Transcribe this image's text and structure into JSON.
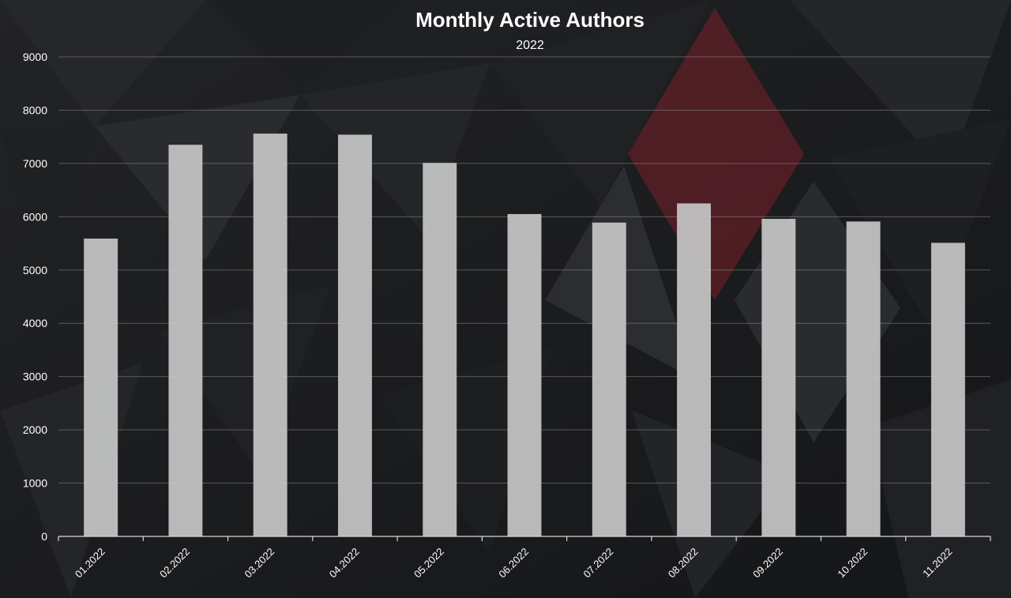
{
  "chart_data": {
    "type": "bar",
    "title": "Monthly Active Authors",
    "subtitle": "2022",
    "xlabel": "",
    "ylabel": "",
    "categories": [
      "01.2022",
      "02.2022",
      "03.2022",
      "04.2022",
      "05.2022",
      "06.2022",
      "07.2022",
      "08.2022",
      "09.2022",
      "10.2022",
      "11.2022"
    ],
    "values": [
      5590,
      7350,
      7560,
      7540,
      7010,
      6050,
      5890,
      6250,
      5960,
      5910,
      5510
    ],
    "ylim": [
      0,
      9000
    ],
    "yticks": [
      "0",
      "1000",
      "2000",
      "3000",
      "4000",
      "5000",
      "6000",
      "7000",
      "8000",
      "9000"
    ],
    "grid": true,
    "legend": "none",
    "colors": {
      "background": "#1b1c1e",
      "bar": "#c2c2c2",
      "grid": "#8a8a8a",
      "text": "#ffffff",
      "accent_shape": "#7a1f29"
    }
  }
}
